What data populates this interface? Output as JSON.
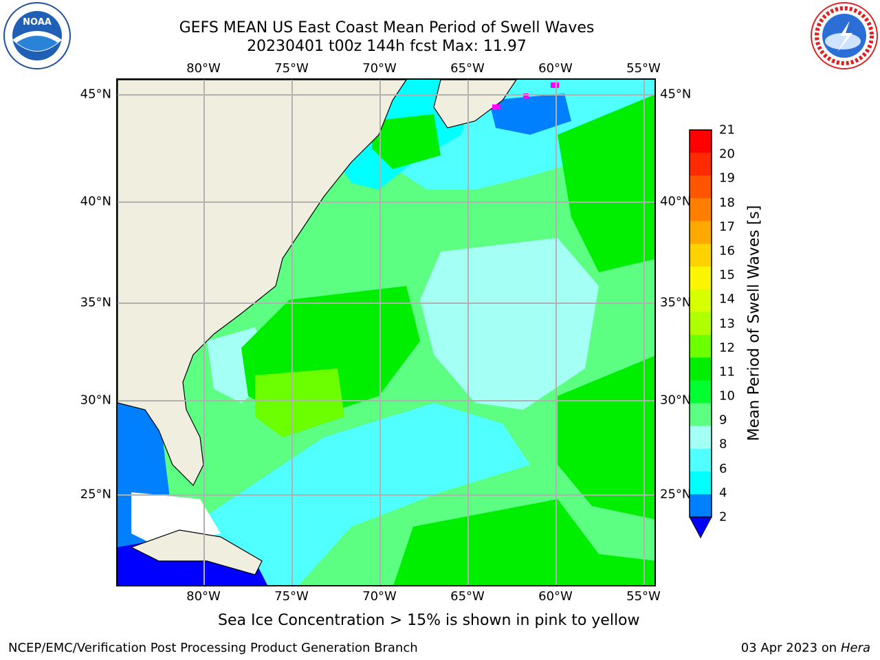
{
  "title_line1": "GEFS MEAN US East Coast Mean Period of Swell Waves",
  "title_line2": "20230401 t00z 144h fcst   Max: 11.97",
  "logos": {
    "left": "noaa-logo",
    "right": "nws-logo",
    "left_text": "NOAA",
    "right_text": "NATIONAL WEATHER SERVICE"
  },
  "map": {
    "lon_labels": [
      "80°W",
      "75°W",
      "70°W",
      "65°W",
      "60°W",
      "55°W"
    ],
    "lat_labels": [
      "45°N",
      "40°N",
      "35°N",
      "30°N",
      "25°N"
    ],
    "land_color": "#efeedf",
    "grid_color": "#b0b0b0"
  },
  "colorbar": {
    "label": "Mean Period of Swell Waves [s]",
    "ticks": [
      "21",
      "20",
      "19",
      "18",
      "17",
      "16",
      "15",
      "14",
      "13",
      "12",
      "11",
      "10",
      "9",
      "8",
      "6",
      "4",
      "2"
    ],
    "colors": [
      "#ff0000",
      "#ff2a00",
      "#ff5400",
      "#ff7e00",
      "#ffa800",
      "#ffd200",
      "#fcf500",
      "#d8ff00",
      "#b0ff00",
      "#6cff00",
      "#00ee00",
      "#00ff30",
      "#5cff82",
      "#a4fff4",
      "#50ffff",
      "#00ffff",
      "#0080ff"
    ],
    "extend_color": "#0000ff"
  },
  "footer": {
    "note": "Sea Ice Concentration > 15% is shown in pink to yellow",
    "left": "NCEP/EMC/Verification Post Processing Product Generation Branch",
    "right_date": "03 Apr 2023 on",
    "right_machine": "Hera"
  }
}
